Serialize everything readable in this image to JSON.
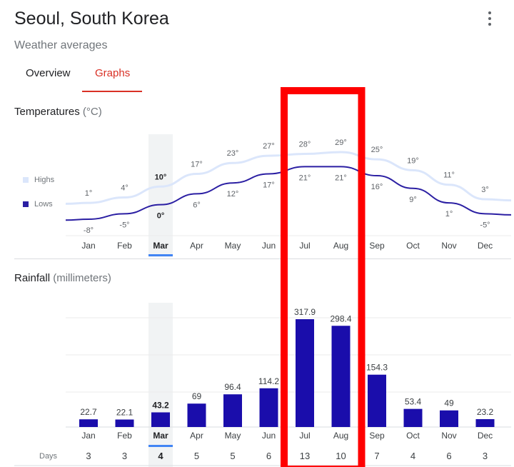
{
  "header": {
    "title": "Seoul, South Korea",
    "subtitle": "Weather averages",
    "menu_icon": "more-vert-icon"
  },
  "tabs": [
    {
      "label": "Overview",
      "active": false
    },
    {
      "label": "Graphs",
      "active": true
    }
  ],
  "colors": {
    "accent": "#d93025",
    "highs": "#dbe6fb",
    "lows": "#2b1fa3",
    "bars": "#1a0dab",
    "selected_month": "#4285f4",
    "annotation": "#ff0000"
  },
  "months": [
    "Jan",
    "Feb",
    "Mar",
    "Apr",
    "May",
    "Jun",
    "Jul",
    "Aug",
    "Sep",
    "Oct",
    "Nov",
    "Dec"
  ],
  "selected_month": "Mar",
  "annotation": {
    "type": "red-outline-box",
    "months": [
      "Jul",
      "Aug"
    ]
  },
  "temperatures": {
    "title": "Temperatures",
    "unit": "(°C)",
    "legend": {
      "highs": "Highs",
      "lows": "Lows"
    }
  },
  "rainfall": {
    "title": "Rainfall",
    "unit": "(millimeters)",
    "days_label": "Days"
  },
  "chart_data": [
    {
      "type": "line",
      "title": "Temperatures (°C)",
      "categories": [
        "Jan",
        "Feb",
        "Mar",
        "Apr",
        "May",
        "Jun",
        "Jul",
        "Aug",
        "Sep",
        "Oct",
        "Nov",
        "Dec"
      ],
      "series": [
        {
          "name": "Highs",
          "values": [
            1,
            4,
            10,
            17,
            23,
            27,
            28,
            29,
            25,
            19,
            11,
            3
          ]
        },
        {
          "name": "Lows",
          "values": [
            -8,
            -5,
            0,
            6,
            12,
            17,
            21,
            21,
            16,
            9,
            1,
            -5
          ]
        }
      ],
      "legend": "left"
    },
    {
      "type": "bar",
      "title": "Rainfall (millimeters)",
      "categories": [
        "Jan",
        "Feb",
        "Mar",
        "Apr",
        "May",
        "Jun",
        "Jul",
        "Aug",
        "Sep",
        "Oct",
        "Nov",
        "Dec"
      ],
      "values": [
        22.7,
        22.1,
        43.2,
        69,
        96.4,
        114.2,
        317.9,
        298.4,
        154.3,
        53.4,
        49,
        23.2
      ],
      "value_labels": [
        "22.7",
        "22.1",
        "43.2",
        "69",
        "96.4",
        "114.2",
        "317.9",
        "298.4",
        "154.3",
        "53.4",
        "49",
        "23.2"
      ],
      "days": [
        3,
        3,
        4,
        5,
        5,
        6,
        13,
        10,
        7,
        4,
        6,
        3
      ],
      "grid": true
    }
  ]
}
